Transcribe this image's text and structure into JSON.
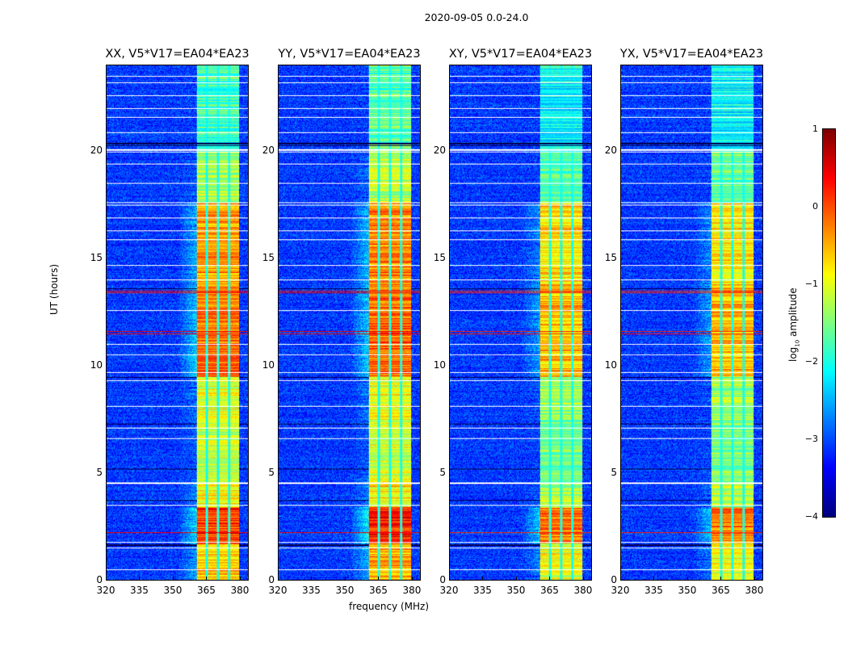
{
  "chart_data": {
    "type": "heatmap",
    "title": "2020-09-05 0.0-24.0",
    "xlabel": "frequency (MHz)",
    "ylabel": "UT (hours)",
    "xlim": [
      320,
      384
    ],
    "ylim": [
      0,
      24
    ],
    "xticks": [
      320,
      335,
      350,
      365,
      380
    ],
    "yticks": [
      0,
      5,
      10,
      15,
      20
    ],
    "colorbar": {
      "label": "log10 amplitude",
      "label_main": "log",
      "label_sub": "10",
      "label_rest": " amplitude",
      "range": [
        -4,
        1
      ],
      "ticks": [
        1,
        0,
        -1,
        -2,
        -3,
        -4
      ],
      "tick_labels": [
        "1",
        "0",
        "−1",
        "−2",
        "−3",
        "−4"
      ],
      "colormap": "jet"
    },
    "panels": [
      {
        "title": "XX, V5*V17=EA04*EA23",
        "band_offset": 0.0
      },
      {
        "title": "YY, V5*V17=EA04*EA23",
        "band_offset": 0.1
      },
      {
        "title": "XY, V5*V17=EA04*EA23",
        "band_offset": -0.35
      },
      {
        "title": "YX, V5*V17=EA04*EA23",
        "band_offset": -0.35
      }
    ],
    "background_level": -3.1,
    "rfi_band_mhz": [
      360.5,
      380
    ],
    "subband_gaps_mhz": [
      365.2,
      370.2,
      375.2
    ],
    "band_level_by_hour": [
      {
        "from": 0,
        "to": 1.7,
        "level": -0.6
      },
      {
        "from": 1.7,
        "to": 3.4,
        "level": 0.15
      },
      {
        "from": 3.4,
        "to": 4.5,
        "level": -0.9
      },
      {
        "from": 4.5,
        "to": 7.5,
        "level": -1.2
      },
      {
        "from": 7.5,
        "to": 9.5,
        "level": -1.0
      },
      {
        "from": 9.5,
        "to": 13.8,
        "level": -0.2
      },
      {
        "from": 13.8,
        "to": 17.6,
        "level": -0.4
      },
      {
        "from": 17.6,
        "to": 20.0,
        "level": -1.3
      },
      {
        "from": 20.0,
        "to": 24.0,
        "level": -1.8
      }
    ],
    "strong_rfi_hours": [
      11.5,
      11.6,
      13.4,
      13.5,
      2.2
    ],
    "flagged_hours": [
      0.5,
      1.5,
      1.75,
      3.5,
      4.5,
      4.55,
      6.6,
      7.1,
      8.1,
      9.3,
      9.7,
      10.5,
      11.0,
      12.6,
      14.0,
      14.7,
      15.9,
      16.3,
      16.9,
      17.5,
      17.6,
      18.5,
      19.4,
      20.0,
      20.05,
      20.1,
      20.9,
      21.6,
      22.0,
      22.6,
      23.2,
      23.5
    ],
    "dark_hours": [
      1.6,
      1.65,
      9.45,
      13.6,
      20.3,
      20.35,
      20.4,
      5.2,
      3.7,
      7.3
    ]
  }
}
